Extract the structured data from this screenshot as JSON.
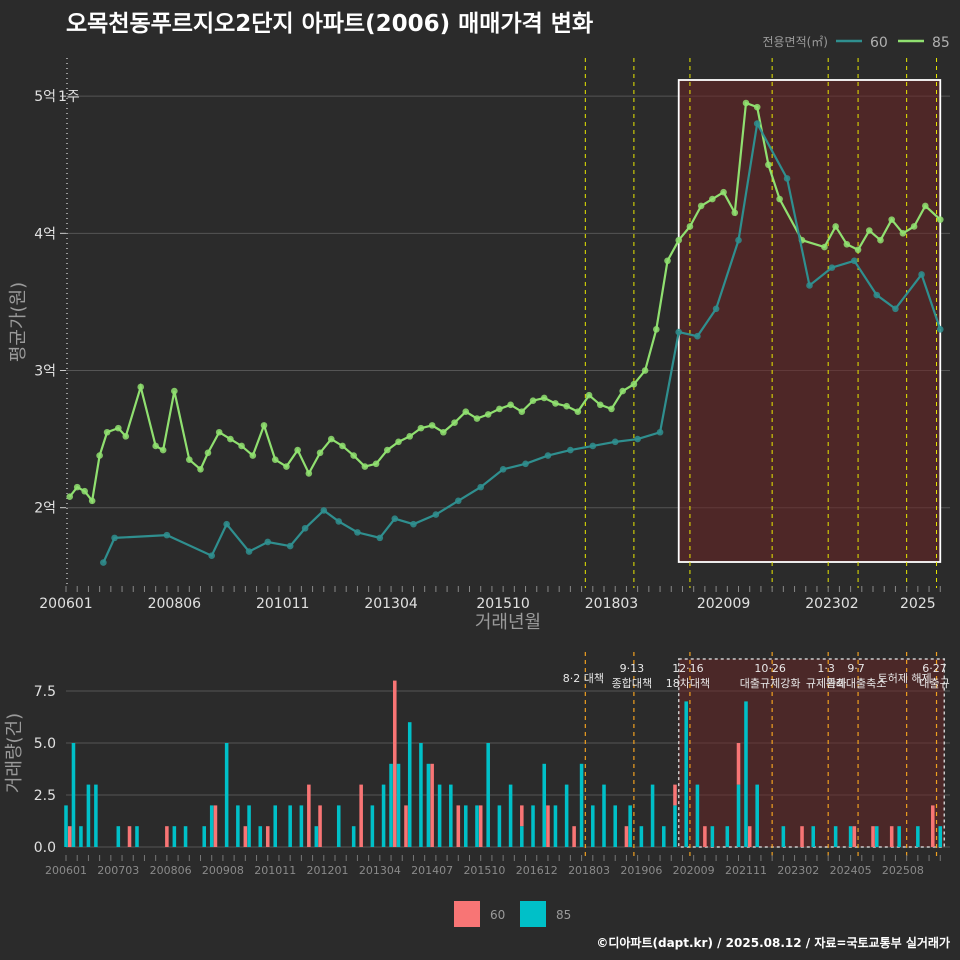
{
  "title": "오목천동푸르지오2단지 아파트(2006) 매매가격 변화",
  "caption": "©디아파트(dapt.kr) / 2025.08.12 / 자료=국토교통부 실거래가",
  "colors": {
    "bg": "#2b2b2b",
    "s60": "#2f8f8f",
    "s85": "#90e070",
    "bar60": "#f87575",
    "bar85": "#00c0c8",
    "policy": "#e8e800",
    "policy_bottom": "#f0a020",
    "highlight": "#6b2525"
  },
  "chart_data": [
    {
      "type": "line",
      "title": "",
      "xlabel": "거래년월",
      "ylabel": "평균가(원)",
      "x_range": [
        "2006-01",
        "2025-08"
      ],
      "x_ticks": [
        "200601",
        "200806",
        "201011",
        "201304",
        "201510",
        "201803",
        "202009",
        "202302",
        "2025"
      ],
      "y_ticks": [
        "2억",
        "3억",
        "4억",
        "5억"
      ],
      "y_tick_values": [
        2.0,
        3.0,
        4.0,
        5.0
      ],
      "ylim": [
        1.4,
        5.3
      ],
      "unit": "억원",
      "annotation": "1주",
      "legend": {
        "title": "전용면적(㎡)",
        "entries": [
          "60",
          "85"
        ],
        "placement": "top-right"
      },
      "highlight_x": [
        "2019-09",
        "2025-07"
      ],
      "policy_lines_x": [
        "2017-08",
        "2018-09",
        "2019-12",
        "2021-10",
        "2023-01",
        "2023-09",
        "2024-10",
        "2025-06"
      ],
      "series": [
        {
          "name": "85",
          "color": "#90e070",
          "x": [
            "2006-02",
            "2006-04",
            "2006-06",
            "2006-08",
            "2006-10",
            "2006-12",
            "2007-03",
            "2007-05",
            "2007-09",
            "2008-01",
            "2008-03",
            "2008-06",
            "2008-10",
            "2009-01",
            "2009-03",
            "2009-06",
            "2009-09",
            "2009-12",
            "2010-03",
            "2010-06",
            "2010-09",
            "2010-12",
            "2011-03",
            "2011-06",
            "2011-09",
            "2011-12",
            "2012-03",
            "2012-06",
            "2012-09",
            "2012-12",
            "2013-03",
            "2013-06",
            "2013-09",
            "2013-12",
            "2014-03",
            "2014-06",
            "2014-09",
            "2014-12",
            "2015-03",
            "2015-06",
            "2015-09",
            "2015-12",
            "2016-03",
            "2016-06",
            "2016-09",
            "2016-12",
            "2017-03",
            "2017-06",
            "2017-09",
            "2017-12",
            "2018-03",
            "2018-06",
            "2018-09",
            "2018-12",
            "2019-03",
            "2019-06",
            "2019-09",
            "2019-12",
            "2020-03",
            "2020-06",
            "2020-09",
            "2020-12",
            "2021-03",
            "2021-06",
            "2021-09",
            "2021-12",
            "2022-06",
            "2022-12",
            "2023-03",
            "2023-06",
            "2023-09",
            "2023-12",
            "2024-03",
            "2024-06",
            "2024-09",
            "2024-12",
            "2025-03",
            "2025-07"
          ],
          "y": [
            2.08,
            2.15,
            2.12,
            2.05,
            2.38,
            2.55,
            2.58,
            2.52,
            2.88,
            2.45,
            2.42,
            2.85,
            2.35,
            2.28,
            2.4,
            2.55,
            2.5,
            2.45,
            2.38,
            2.6,
            2.35,
            2.3,
            2.42,
            2.25,
            2.4,
            2.5,
            2.45,
            2.38,
            2.3,
            2.32,
            2.42,
            2.48,
            2.52,
            2.58,
            2.6,
            2.55,
            2.62,
            2.7,
            2.65,
            2.68,
            2.72,
            2.75,
            2.7,
            2.78,
            2.8,
            2.76,
            2.74,
            2.7,
            2.82,
            2.75,
            2.72,
            2.85,
            2.9,
            3.0,
            3.3,
            3.8,
            3.95,
            4.05,
            4.2,
            4.25,
            4.3,
            4.15,
            4.95,
            4.92,
            4.5,
            4.25,
            3.95,
            3.9,
            4.05,
            3.92,
            3.88,
            4.02,
            3.95,
            4.1,
            4.0,
            4.05,
            4.2,
            4.1
          ]
        },
        {
          "name": "60",
          "color": "#2f8f8f",
          "x": [
            "2006-11",
            "2007-02",
            "2008-04",
            "2009-04",
            "2009-08",
            "2010-02",
            "2010-07",
            "2011-01",
            "2011-05",
            "2011-10",
            "2012-02",
            "2012-07",
            "2013-01",
            "2013-05",
            "2013-10",
            "2014-04",
            "2014-10",
            "2015-04",
            "2015-10",
            "2016-04",
            "2016-10",
            "2017-04",
            "2017-10",
            "2018-04",
            "2018-10",
            "2019-04",
            "2019-09",
            "2020-02",
            "2020-07",
            "2021-01",
            "2021-06",
            "2022-02",
            "2022-08",
            "2023-02",
            "2023-08",
            "2024-02",
            "2024-07",
            "2025-02",
            "2025-07"
          ],
          "y": [
            1.6,
            1.78,
            1.8,
            1.65,
            1.88,
            1.68,
            1.75,
            1.72,
            1.85,
            1.98,
            1.9,
            1.82,
            1.78,
            1.92,
            1.88,
            1.95,
            2.05,
            2.15,
            2.28,
            2.32,
            2.38,
            2.42,
            2.45,
            2.48,
            2.5,
            2.55,
            3.28,
            3.25,
            3.45,
            3.95,
            4.8,
            4.4,
            3.62,
            3.75,
            3.8,
            3.55,
            3.45,
            3.7,
            3.3
          ]
        }
      ]
    },
    {
      "type": "bar",
      "title": "",
      "xlabel": "",
      "ylabel": "거래량(건)",
      "x_ticks": [
        "200601",
        "200703",
        "200806",
        "200908",
        "201011",
        "201201",
        "201304",
        "201407",
        "201510",
        "201612",
        "201803",
        "201906",
        "202009",
        "202111",
        "202302",
        "202405",
        "202508"
      ],
      "y_ticks": [
        "0.0",
        "2.5",
        "5.0",
        "7.5"
      ],
      "ylim": [
        0,
        9
      ],
      "stacked": true,
      "legend": {
        "entries": [
          "60",
          "85"
        ],
        "placement": "bottom"
      },
      "annotations": [
        {
          "date": "2017-08",
          "lines": [
            "8·2 대책"
          ]
        },
        {
          "date": "2018-09",
          "lines": [
            "9·13",
            "종합대책"
          ]
        },
        {
          "date": "2019-12",
          "lines": [
            "12·16",
            "18차대책"
          ]
        },
        {
          "date": "2021-10",
          "lines": [
            "10·26",
            "대출규제강화"
          ]
        },
        {
          "date": "2023-01",
          "lines": [
            "1·3",
            "규제완화"
          ]
        },
        {
          "date": "2023-09",
          "lines": [
            "9·7",
            "특례대출축소"
          ]
        },
        {
          "date": "2024-10",
          "lines": [
            "토허제 해제"
          ]
        },
        {
          "date": "2025-06",
          "lines": [
            "6·27",
            "대출규"
          ]
        }
      ],
      "series_note": "monthly volumes by area; values per month below",
      "series": [
        {
          "name": "60",
          "values_sparse": {
            "2006-02": 1,
            "2007-06": 1,
            "2008-04": 1,
            "2009-05": 2,
            "2010-01": 1,
            "2010-07": 1,
            "2011-06": 3,
            "2011-09": 2,
            "2012-08": 3,
            "2013-05": 8,
            "2013-08": 2,
            "2014-03": 4,
            "2014-10": 2,
            "2015-04": 2,
            "2016-03": 1,
            "2016-10": 2,
            "2017-05": 1,
            "2018-07": 1,
            "2019-08": 1,
            "2020-04": 1,
            "2021-01": 2,
            "2021-04": 1,
            "2022-06": 1,
            "2023-08": 1,
            "2024-01": 1,
            "2024-06": 1,
            "2025-05": 2
          }
        },
        {
          "name": "85",
          "values_sparse": {
            "2006-01": 2,
            "2006-03": 5,
            "2006-05": 1,
            "2006-07": 3,
            "2006-09": 3,
            "2007-03": 1,
            "2007-08": 1,
            "2008-06": 1,
            "2008-09": 1,
            "2009-02": 1,
            "2009-04": 2,
            "2009-08": 5,
            "2009-11": 2,
            "2010-02": 2,
            "2010-05": 1,
            "2010-09": 2,
            "2011-01": 2,
            "2011-04": 2,
            "2011-08": 1,
            "2012-02": 2,
            "2012-06": 1,
            "2012-11": 2,
            "2013-02": 3,
            "2013-04": 4,
            "2013-06": 4,
            "2013-09": 6,
            "2013-12": 5,
            "2014-02": 4,
            "2014-05": 3,
            "2014-08": 3,
            "2014-12": 2,
            "2015-03": 2,
            "2015-06": 5,
            "2015-09": 2,
            "2015-12": 3,
            "2016-03": 1,
            "2016-06": 2,
            "2016-09": 4,
            "2016-12": 2,
            "2017-03": 3,
            "2017-07": 4,
            "2017-10": 2,
            "2018-01": 3,
            "2018-04": 2,
            "2018-08": 2,
            "2018-11": 1,
            "2019-02": 3,
            "2019-05": 1,
            "2019-08": 2,
            "2019-11": 7,
            "2020-02": 3,
            "2020-06": 1,
            "2020-10": 1,
            "2021-01": 3,
            "2021-03": 7,
            "2021-06": 3,
            "2022-01": 1,
            "2022-09": 1,
            "2023-03": 1,
            "2023-07": 1,
            "2024-02": 1,
            "2024-08": 1,
            "2025-01": 1,
            "2025-07": 1
          }
        }
      ]
    }
  ]
}
